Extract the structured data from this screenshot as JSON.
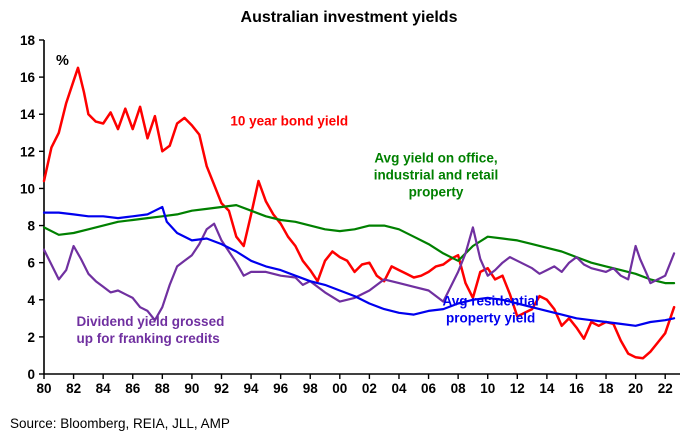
{
  "title": "Australian investment yields",
  "source": "Source: Bloomberg, REIA, JLL, AMP",
  "chart_data": {
    "type": "line",
    "title": "Australian investment yields",
    "ylabel": "%",
    "xlim": [
      1980,
      2023
    ],
    "ylim": [
      0,
      18
    ],
    "grid": false,
    "legend_position": "inline-annotations",
    "y_ticks": [
      0,
      2,
      4,
      6,
      8,
      10,
      12,
      14,
      16,
      18
    ],
    "x_ticks": [
      1980,
      1982,
      1984,
      1986,
      1988,
      1990,
      1992,
      1994,
      1996,
      1998,
      2000,
      2002,
      2004,
      2006,
      2008,
      2010,
      2012,
      2014,
      2016,
      2018,
      2020,
      2022
    ],
    "x_tick_labels": [
      "80",
      "82",
      "84",
      "86",
      "88",
      "90",
      "92",
      "94",
      "96",
      "98",
      "00",
      "02",
      "04",
      "06",
      "08",
      "10",
      "12",
      "14",
      "16",
      "18",
      "20",
      "22"
    ],
    "pct_label": "%",
    "series": [
      {
        "name": "10 year bond yield",
        "color": "#fe0000",
        "x": [
          1980,
          1980.5,
          1981,
          1981.5,
          1982,
          1982.3,
          1982.7,
          1983,
          1983.5,
          1984,
          1984.5,
          1985,
          1985.5,
          1986,
          1986.5,
          1987,
          1987.5,
          1988,
          1988.5,
          1989,
          1989.5,
          1990,
          1990.5,
          1991,
          1991.5,
          1992,
          1992.5,
          1993,
          1993.5,
          1994,
          1994.5,
          1995,
          1995.5,
          1996,
          1996.5,
          1997,
          1997.5,
          1998,
          1998.5,
          1999,
          1999.5,
          2000,
          2000.5,
          2001,
          2001.5,
          2002,
          2002.5,
          2003,
          2003.5,
          2004,
          2004.5,
          2005,
          2005.5,
          2006,
          2006.5,
          2007,
          2007.5,
          2008,
          2008.5,
          2009,
          2009.5,
          2010,
          2010.5,
          2011,
          2011.5,
          2012,
          2012.5,
          2013,
          2013.5,
          2014,
          2014.5,
          2015,
          2015.5,
          2016,
          2016.5,
          2017,
          2017.5,
          2018,
          2018.5,
          2019,
          2019.5,
          2020,
          2020.5,
          2021,
          2021.5,
          2022,
          2022.6
        ],
        "values": [
          10.4,
          12.2,
          13.0,
          14.6,
          15.8,
          16.5,
          15.2,
          14.0,
          13.6,
          13.5,
          14.1,
          13.2,
          14.3,
          13.2,
          14.4,
          12.7,
          13.9,
          12.0,
          12.3,
          13.5,
          13.8,
          13.4,
          12.9,
          11.2,
          10.2,
          9.2,
          8.8,
          7.4,
          6.9,
          8.6,
          10.4,
          9.3,
          8.6,
          8.1,
          7.4,
          6.9,
          6.1,
          5.6,
          5.0,
          6.1,
          6.6,
          6.3,
          6.1,
          5.5,
          5.9,
          6.0,
          5.3,
          5.0,
          5.8,
          5.6,
          5.4,
          5.2,
          5.3,
          5.5,
          5.8,
          5.9,
          6.2,
          6.4,
          4.9,
          4.1,
          5.5,
          5.7,
          5.1,
          5.3,
          4.3,
          3.1,
          3.3,
          3.5,
          4.2,
          4.0,
          3.5,
          2.6,
          3.0,
          2.5,
          1.9,
          2.8,
          2.6,
          2.8,
          2.7,
          1.8,
          1.1,
          0.9,
          0.85,
          1.2,
          1.7,
          2.2,
          3.6
        ]
      },
      {
        "name": "Avg yield on office, industrial and retail property",
        "color": "#008000",
        "x": [
          1980,
          1981,
          1982,
          1983,
          1984,
          1985,
          1986,
          1987,
          1988,
          1989,
          1990,
          1991,
          1992,
          1993,
          1994,
          1995,
          1996,
          1997,
          1998,
          1999,
          2000,
          2001,
          2002,
          2003,
          2004,
          2005,
          2006,
          2007,
          2008,
          2009,
          2010,
          2011,
          2012,
          2013,
          2014,
          2015,
          2016,
          2017,
          2018,
          2019,
          2020,
          2021,
          2022,
          2022.6
        ],
        "values": [
          7.9,
          7.5,
          7.6,
          7.8,
          8.0,
          8.2,
          8.3,
          8.4,
          8.5,
          8.6,
          8.8,
          8.9,
          9.0,
          9.1,
          8.8,
          8.5,
          8.3,
          8.2,
          8.0,
          7.8,
          7.7,
          7.8,
          8.0,
          8.0,
          7.8,
          7.4,
          7.0,
          6.5,
          6.1,
          6.9,
          7.4,
          7.3,
          7.2,
          7.0,
          6.8,
          6.6,
          6.3,
          6.0,
          5.8,
          5.6,
          5.4,
          5.1,
          4.9,
          4.9
        ]
      },
      {
        "name": "Dividend yield grossed up for franking credits",
        "color": "#7030a0",
        "x": [
          1980,
          1980.5,
          1981,
          1981.5,
          1982,
          1982.5,
          1983,
          1983.5,
          1984,
          1984.5,
          1985,
          1985.5,
          1986,
          1986.5,
          1987,
          1987.5,
          1988,
          1988.5,
          1989,
          1989.5,
          1990,
          1990.5,
          1991,
          1991.5,
          1992,
          1992.5,
          1993,
          1993.5,
          1994,
          1995,
          1996,
          1997,
          1997.5,
          1998,
          1999,
          2000,
          2001,
          2002,
          2003,
          2004,
          2005,
          2006,
          2007,
          2008,
          2008.5,
          2009,
          2009.5,
          2010,
          2010.5,
          2011,
          2011.5,
          2012,
          2013,
          2013.5,
          2014,
          2014.5,
          2015,
          2015.5,
          2016,
          2016.5,
          2017,
          2018,
          2018.5,
          2019,
          2019.5,
          2020,
          2020.3,
          2020.8,
          2021,
          2021.5,
          2022,
          2022.6
        ],
        "values": [
          6.7,
          5.9,
          5.1,
          5.6,
          6.9,
          6.2,
          5.4,
          5.0,
          4.7,
          4.4,
          4.5,
          4.3,
          4.1,
          3.6,
          3.4,
          2.9,
          3.6,
          4.8,
          5.8,
          6.1,
          6.4,
          7.0,
          7.8,
          8.1,
          7.2,
          6.6,
          6.0,
          5.3,
          5.5,
          5.5,
          5.3,
          5.2,
          4.8,
          5.0,
          4.4,
          3.9,
          4.1,
          4.5,
          5.1,
          4.9,
          4.7,
          4.5,
          3.9,
          5.5,
          6.5,
          7.9,
          6.2,
          5.3,
          5.6,
          6.0,
          6.3,
          6.1,
          5.7,
          5.4,
          5.6,
          5.8,
          5.5,
          6.0,
          6.3,
          5.9,
          5.7,
          5.5,
          5.7,
          5.3,
          5.1,
          6.9,
          6.2,
          5.3,
          4.9,
          5.1,
          5.3,
          6.5
        ]
      },
      {
        "name": "Avg residential property yield",
        "color": "#0000ee",
        "x": [
          1980,
          1981,
          1982,
          1983,
          1984,
          1985,
          1986,
          1987,
          1987.5,
          1988,
          1988.3,
          1989,
          1990,
          1991,
          1992,
          1993,
          1994,
          1995,
          1996,
          1997,
          1998,
          1999,
          2000,
          2001,
          2002,
          2003,
          2004,
          2005,
          2006,
          2007,
          2008,
          2009,
          2010,
          2011,
          2012,
          2013,
          2014,
          2015,
          2016,
          2017,
          2018,
          2019,
          2020,
          2021,
          2022,
          2022.6
        ],
        "values": [
          8.7,
          8.7,
          8.6,
          8.5,
          8.5,
          8.4,
          8.5,
          8.6,
          8.8,
          9.0,
          8.2,
          7.6,
          7.2,
          7.3,
          7.0,
          6.6,
          6.1,
          5.8,
          5.6,
          5.3,
          5.0,
          4.8,
          4.5,
          4.2,
          3.8,
          3.5,
          3.3,
          3.2,
          3.4,
          3.5,
          3.8,
          4.0,
          4.1,
          4.0,
          3.8,
          3.6,
          3.4,
          3.2,
          3.0,
          2.9,
          2.8,
          2.7,
          2.6,
          2.8,
          2.9,
          3.0
        ]
      }
    ],
    "annotations": [
      {
        "lines": [
          "10 year bond yield"
        ],
        "x": 1992.6,
        "y": 13.4,
        "color": "#fe0000",
        "anchor": "start"
      },
      {
        "lines": [
          "Avg yield on office,",
          "industrial and retail",
          "property"
        ],
        "x": 2006.5,
        "y": 11.4,
        "color": "#008000",
        "anchor": "middle"
      },
      {
        "lines": [
          "Dividend yield grossed",
          "up for franking credits"
        ],
        "x": 1982.2,
        "y": 2.6,
        "color": "#7030a0",
        "anchor": "start"
      },
      {
        "lines": [
          "Avg residential",
          "property yield"
        ],
        "x": 2010.2,
        "y": 3.7,
        "color": "#0000ee",
        "anchor": "middle"
      }
    ]
  }
}
